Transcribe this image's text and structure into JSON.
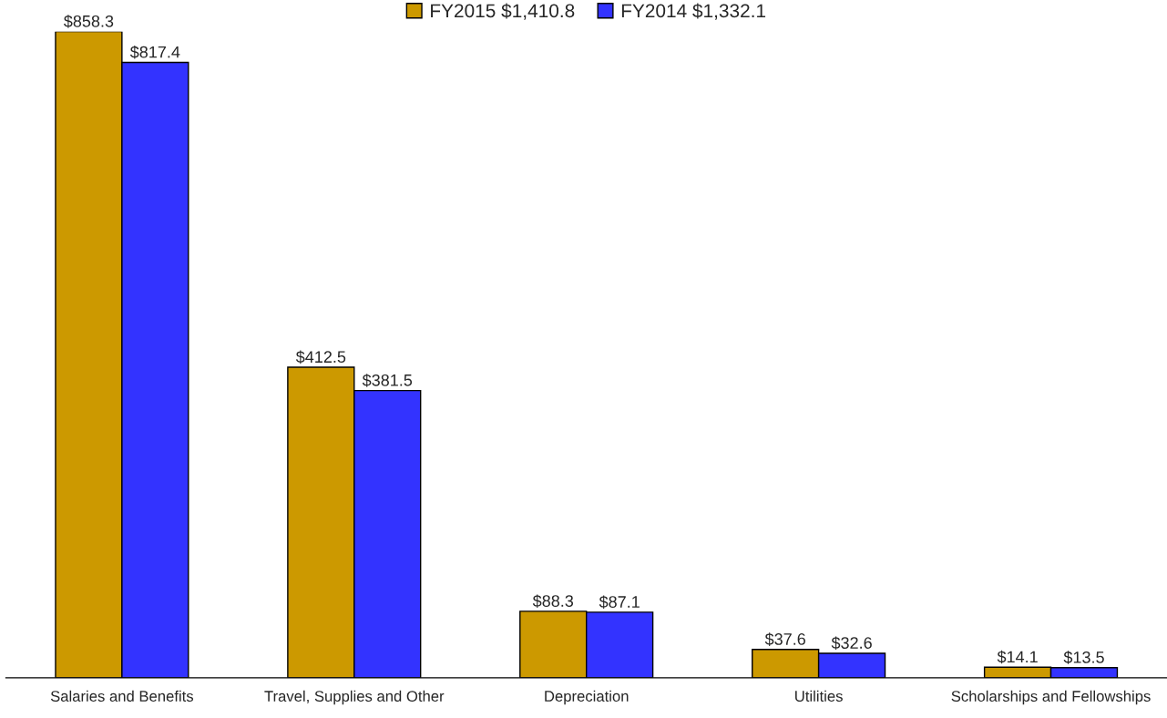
{
  "chart_data": {
    "type": "bar",
    "categories": [
      "Salaries and Benefits",
      "Travel, Supplies and Other",
      "Depreciation",
      "Utilities",
      "Scholarships and Fellowships"
    ],
    "series": [
      {
        "name": "FY2015 $1,410.8",
        "color": "#cc9900",
        "values": [
          858.3,
          412.5,
          88.3,
          37.6,
          14.1
        ],
        "value_labels": [
          "$858.3",
          "$412.5",
          "$88.3",
          "$37.6",
          "$14.1"
        ]
      },
      {
        "name": "FY2014 $1,332.1",
        "color": "#3333ff",
        "values": [
          817.4,
          381.5,
          87.1,
          32.6,
          13.5
        ],
        "value_labels": [
          "$817.4",
          "$381.5",
          "$87.1",
          "$32.6",
          "$13.5"
        ]
      }
    ],
    "legend": "top",
    "grid": false
  }
}
